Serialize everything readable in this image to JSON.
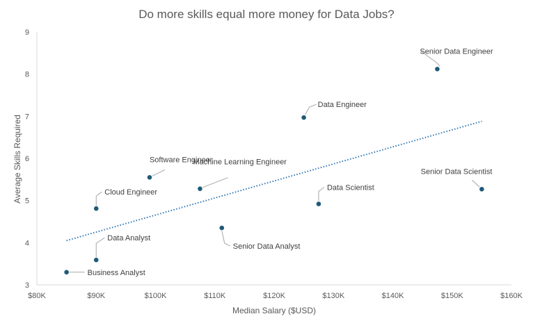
{
  "chart_data": {
    "type": "scatter",
    "title": "Do more skills equal more money for Data Jobs?",
    "xlabel": "Median Salary ($USD)",
    "ylabel": "Average Skills Required",
    "xlim": [
      80000,
      160000
    ],
    "ylim": [
      3,
      9
    ],
    "x_ticks": [
      80000,
      90000,
      100000,
      110000,
      120000,
      130000,
      140000,
      150000,
      160000
    ],
    "x_tick_labels": [
      "$80K",
      "$90K",
      "$100K",
      "$110K",
      "$120K",
      "$130K",
      "$140K",
      "$150K",
      "$160K"
    ],
    "y_ticks": [
      3,
      4,
      5,
      6,
      7,
      8,
      9
    ],
    "y_tick_labels": [
      "3",
      "4",
      "5",
      "6",
      "7",
      "8",
      "9"
    ],
    "grid": false,
    "legend": "none",
    "points": [
      {
        "label": "Senior Data Engineer",
        "x": 147500,
        "y": 8.12
      },
      {
        "label": "Data Engineer",
        "x": 125000,
        "y": 6.97
      },
      {
        "label": "Software Engineer",
        "x": 99000,
        "y": 5.55
      },
      {
        "label": "Machine Learning Engineer",
        "x": 107500,
        "y": 5.28
      },
      {
        "label": "Cloud Engineer",
        "x": 90000,
        "y": 4.81
      },
      {
        "label": "Data Scientist",
        "x": 127500,
        "y": 4.92
      },
      {
        "label": "Senior Data Scientist",
        "x": 155000,
        "y": 5.27
      },
      {
        "label": "Senior Data Analyst",
        "x": 111175,
        "y": 4.35
      },
      {
        "label": "Data Analyst",
        "x": 90000,
        "y": 3.59
      },
      {
        "label": "Business Analyst",
        "x": 85000,
        "y": 3.3
      }
    ],
    "trendline": {
      "style": "dotted",
      "x": [
        85000,
        155000
      ],
      "y": [
        4.05,
        6.88
      ]
    },
    "colors": {
      "point": "#1f5a78",
      "trendline": "#2e75b6",
      "axis": "#d9d9d9",
      "text": "#595959",
      "leader": "#a6a6a6"
    }
  }
}
